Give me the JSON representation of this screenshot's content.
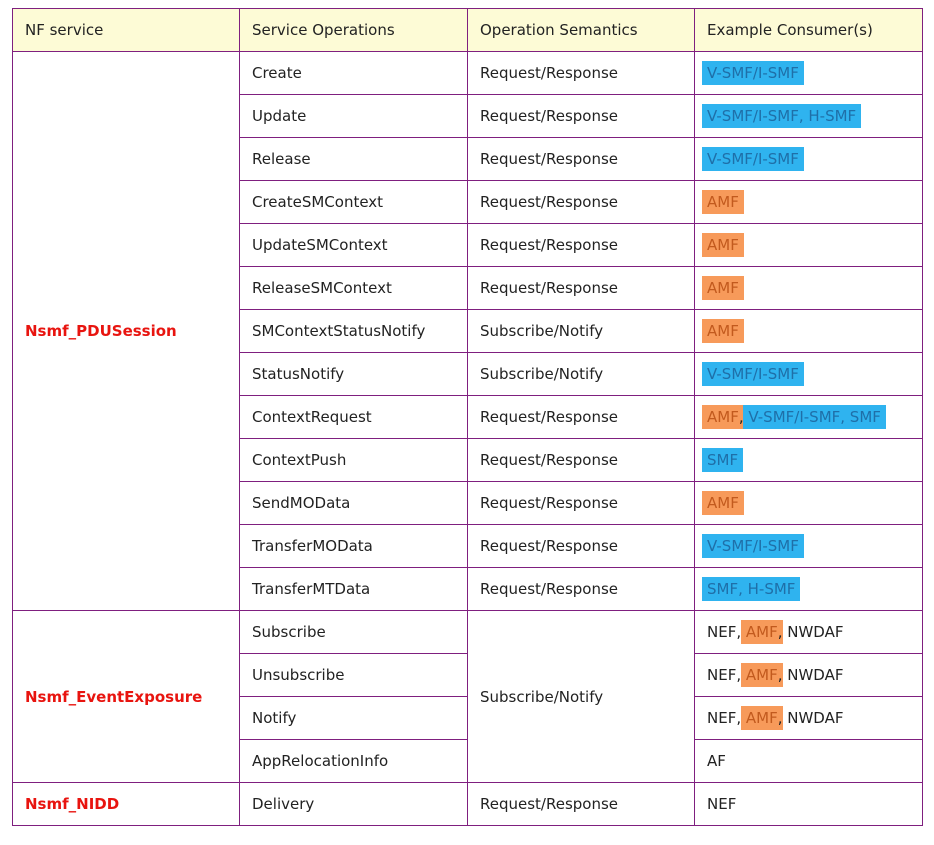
{
  "headers": [
    "NF service",
    "Service Operations",
    "Operation Semantics",
    "Example Consumer(s)"
  ],
  "groups": [
    {
      "service": "Nsmf_PDUSession",
      "rows": [
        {
          "operation": "Create",
          "semantics": "Request/Response",
          "consumers": [
            {
              "t": "V-SMF/I-SMF",
              "hl": "blue"
            }
          ]
        },
        {
          "operation": "Update",
          "semantics": "Request/Response",
          "consumers": [
            {
              "t": "V-SMF/I-SMF, H-SMF",
              "hl": "blue"
            }
          ]
        },
        {
          "operation": "Release",
          "semantics": "Request/Response",
          "consumers": [
            {
              "t": "V-SMF/I-SMF",
              "hl": "blue"
            }
          ]
        },
        {
          "operation": "CreateSMContext",
          "semantics": "Request/Response",
          "consumers": [
            {
              "t": "AMF",
              "hl": "orange"
            }
          ]
        },
        {
          "operation": "UpdateSMContext",
          "semantics": "Request/Response",
          "consumers": [
            {
              "t": "AMF",
              "hl": "orange"
            }
          ]
        },
        {
          "operation": "ReleaseSMContext",
          "semantics": "Request/Response",
          "consumers": [
            {
              "t": "AMF",
              "hl": "orange"
            }
          ]
        },
        {
          "operation": "SMContextStatusNotify",
          "semantics": "Subscribe/Notify",
          "consumers": [
            {
              "t": "AMF",
              "hl": "orange"
            }
          ]
        },
        {
          "operation": "StatusNotify",
          "semantics": "Subscribe/Notify",
          "consumers": [
            {
              "t": "V-SMF/I-SMF",
              "hl": "blue"
            }
          ]
        },
        {
          "operation": "ContextRequest",
          "semantics": "Request/Response",
          "consumers": [
            {
              "t": "AMF",
              "hl": "orange"
            },
            {
              "t": ", ",
              "hl": ""
            },
            {
              "t": "V-SMF/I-SMF, SMF",
              "hl": "blue"
            }
          ]
        },
        {
          "operation": "ContextPush",
          "semantics": "Request/Response",
          "consumers": [
            {
              "t": "SMF",
              "hl": "blue"
            }
          ]
        },
        {
          "operation": "SendMOData",
          "semantics": "Request/Response",
          "consumers": [
            {
              "t": "AMF",
              "hl": "orange"
            }
          ]
        },
        {
          "operation": "TransferMOData",
          "semantics": "Request/Response",
          "consumers": [
            {
              "t": "V-SMF/I-SMF",
              "hl": "blue"
            }
          ]
        },
        {
          "operation": "TransferMTData",
          "semantics": "Request/Response",
          "consumers": [
            {
              "t": "SMF, H-SMF",
              "hl": "blue"
            }
          ]
        }
      ]
    },
    {
      "service": "Nsmf_EventExposure",
      "semantics": "Subscribe/Notify",
      "rows": [
        {
          "operation": "Subscribe",
          "consumers": [
            {
              "t": "NEF, ",
              "hl": ""
            },
            {
              "t": "AMF",
              "hl": "orange"
            },
            {
              "t": ", NWDAF",
              "hl": ""
            }
          ]
        },
        {
          "operation": "Unsubscribe",
          "consumers": [
            {
              "t": "NEF, ",
              "hl": ""
            },
            {
              "t": "AMF",
              "hl": "orange"
            },
            {
              "t": ", NWDAF",
              "hl": ""
            }
          ]
        },
        {
          "operation": "Notify",
          "consumers": [
            {
              "t": "NEF, ",
              "hl": ""
            },
            {
              "t": "AMF",
              "hl": "orange"
            },
            {
              "t": ", NWDAF",
              "hl": ""
            }
          ]
        },
        {
          "operation": "AppRelocationInfo",
          "consumers": [
            {
              "t": "AF",
              "hl": ""
            }
          ]
        }
      ]
    },
    {
      "service": "Nsmf_NIDD",
      "rows": [
        {
          "operation": "Delivery",
          "semantics": "Request/Response",
          "consumers": [
            {
              "t": "NEF",
              "hl": ""
            }
          ]
        }
      ]
    }
  ]
}
